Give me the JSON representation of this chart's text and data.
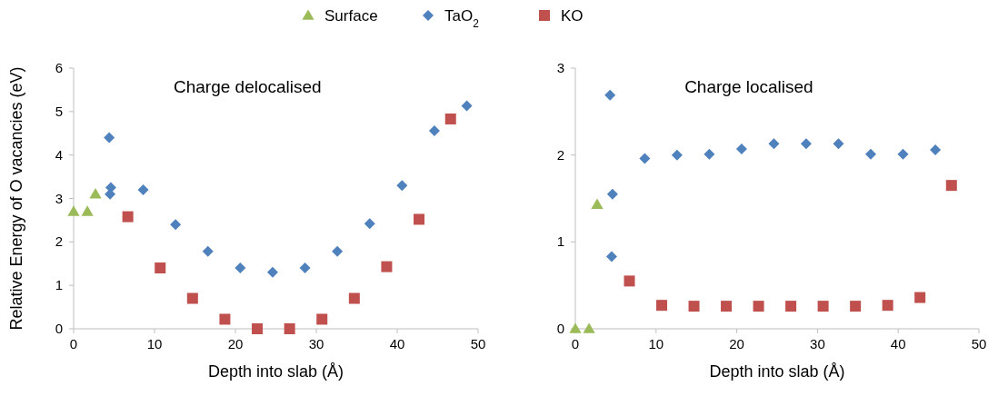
{
  "chart_data": [
    {
      "type": "scatter",
      "title": "Charge delocalised",
      "xlabel": "Depth into slab (Å)",
      "ylabel": "Relative Energy of O vacancies (eV)",
      "xlim": [
        0,
        50
      ],
      "xticks": [
        0,
        10,
        20,
        30,
        40,
        50
      ],
      "ylim": [
        0,
        6
      ],
      "yticks": [
        0,
        1,
        2,
        3,
        4,
        5,
        6
      ],
      "grid": false,
      "legend": "top",
      "series": [
        {
          "name": "Surface",
          "color": "#9bbb59",
          "marker": "triangle",
          "x": [
            0,
            1.7,
            2.7
          ],
          "values": [
            2.7,
            2.7,
            3.1
          ]
        },
        {
          "name": "TaO$_{2}$",
          "color": "#4f81bd",
          "marker": "diamond",
          "x": [
            4.4,
            4.5,
            4.6,
            8.6,
            12.6,
            16.6,
            20.6,
            24.6,
            28.6,
            32.6,
            36.6,
            40.6,
            44.6,
            48.6
          ],
          "values": [
            4.4,
            3.1,
            3.25,
            3.2,
            2.4,
            1.78,
            1.4,
            1.3,
            1.4,
            1.78,
            2.42,
            3.3,
            4.56,
            5.13
          ]
        },
        {
          "name": "KO",
          "color": "#c0504d",
          "marker": "square",
          "x": [
            6.7,
            10.7,
            14.7,
            18.7,
            22.7,
            26.7,
            30.7,
            34.7,
            38.7,
            42.7,
            46.6
          ],
          "values": [
            2.58,
            1.4,
            0.7,
            0.22,
            0,
            0,
            0.22,
            0.7,
            1.43,
            2.52,
            4.83
          ]
        }
      ]
    },
    {
      "type": "scatter",
      "title": "Charge localised",
      "xlabel": "Depth into slab (Å)",
      "xlim": [
        0,
        50
      ],
      "xticks": [
        0,
        10,
        20,
        30,
        40,
        50
      ],
      "ylim": [
        0,
        3
      ],
      "yticks": [
        0,
        1,
        2,
        3
      ],
      "grid": false,
      "series": [
        {
          "color": "#9bbb59",
          "marker": "triangle",
          "x": [
            0,
            1.7,
            2.7
          ],
          "values": [
            0,
            0,
            1.43
          ]
        },
        {
          "color": "#4f81bd",
          "marker": "diamond",
          "x": [
            4.3,
            4.6,
            4.5,
            8.6,
            12.6,
            16.6,
            20.6,
            24.6,
            28.6,
            32.6,
            36.6,
            40.6,
            44.6
          ],
          "values": [
            2.69,
            1.55,
            0.83,
            1.96,
            2.0,
            2.01,
            2.07,
            2.13,
            2.13,
            2.13,
            2.01,
            2.01,
            2.06
          ]
        },
        {
          "color": "#c0504d",
          "marker": "square",
          "x": [
            6.7,
            10.7,
            14.7,
            18.7,
            22.7,
            26.7,
            30.7,
            34.7,
            38.7,
            42.7,
            46.6
          ],
          "values": [
            0.55,
            0.27,
            0.26,
            0.26,
            0.26,
            0.26,
            0.26,
            0.26,
            0.27,
            0.36,
            1.65
          ]
        }
      ]
    }
  ]
}
